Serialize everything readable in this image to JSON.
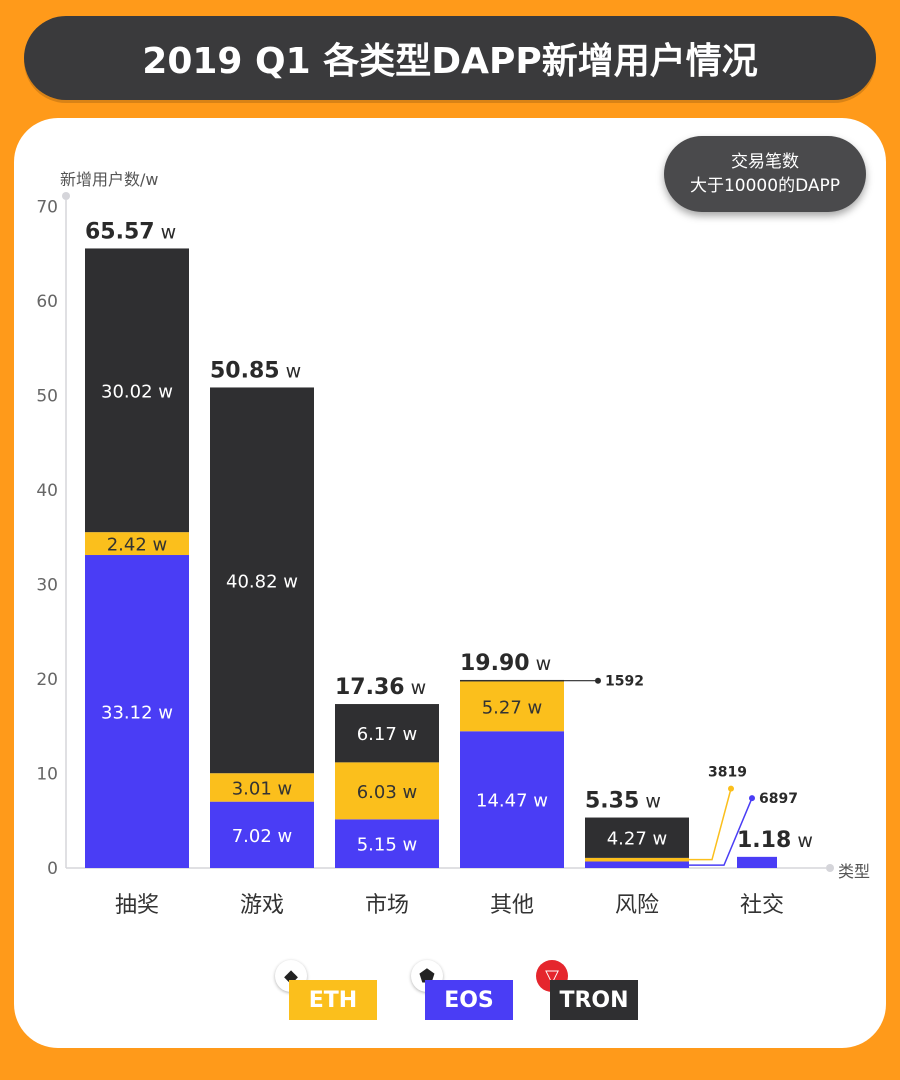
{
  "title": "2019 Q1 各类型DAPP新增用户情况",
  "badge": {
    "line1": "交易笔数",
    "line2": "大于10000的DAPP"
  },
  "colors": {
    "ETH": "#fbbf1c",
    "EOS": "#4a3df5",
    "TRON": "#2f2f31",
    "accent": "#ff9a1a"
  },
  "legend": [
    {
      "label": "ETH",
      "color": "#fbbf1c",
      "icon": "ethereum-icon"
    },
    {
      "label": "EOS",
      "color": "#4a3df5",
      "icon": "eos-icon"
    },
    {
      "label": "TRON",
      "color": "#2f2f31",
      "icon": "tron-icon"
    }
  ],
  "chart_data": {
    "type": "bar",
    "stacked": true,
    "title": "2019 Q1 各类型DAPP新增用户情况",
    "ylabel": "新增用户数/w",
    "xlabel": "类型",
    "ylim": [
      0,
      70
    ],
    "yticks": [
      0,
      10,
      20,
      30,
      40,
      50,
      60,
      70
    ],
    "unit": "w",
    "categories": [
      "抽奖",
      "游戏",
      "市场",
      "其他",
      "风险",
      "社交"
    ],
    "totals": [
      "65.57",
      "50.85",
      "17.36",
      "19.90",
      "5.35",
      "1.18"
    ],
    "series": [
      {
        "name": "EOS",
        "values": [
          33.12,
          7.02,
          5.15,
          14.47,
          0.69,
          1.18
        ],
        "labels": [
          "33.12 w",
          "7.02 w",
          "5.15 w",
          "14.47 w",
          "",
          ""
        ]
      },
      {
        "name": "ETH",
        "values": [
          2.42,
          3.01,
          6.03,
          5.27,
          0.38,
          0
        ],
        "labels": [
          "2.42 w",
          "3.01 w",
          "6.03 w",
          "5.27 w",
          "",
          ""
        ]
      },
      {
        "name": "TRON",
        "values": [
          30.02,
          40.82,
          6.17,
          0.16,
          4.27,
          0
        ],
        "labels": [
          "30.02 w",
          "40.82 w",
          "6.17 w",
          "",
          "4.27 w",
          ""
        ]
      }
    ],
    "annotations": [
      {
        "category": "其他",
        "series": "TRON",
        "text": "1592"
      },
      {
        "category": "风险",
        "series": "ETH",
        "text": "3819"
      },
      {
        "category": "风险",
        "series": "EOS",
        "text": "6897"
      }
    ]
  }
}
